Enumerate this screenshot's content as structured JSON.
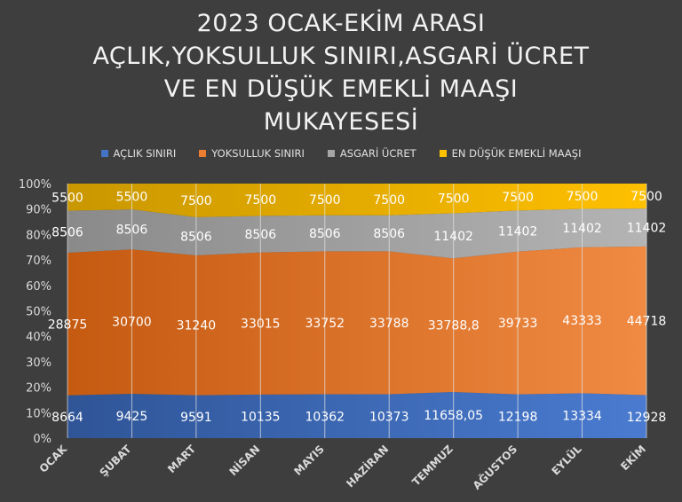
{
  "title_lines": [
    "2023 OCAK-EKİM ARASI",
    "AÇLIK,YOKSULLUK SINIRI,ASGARİ ÜCRET",
    "VE EN DÜŞÜK EMEKLİ MAAŞI",
    "MUKAYESESİ"
  ],
  "colors": {
    "background": "#3e3e3e",
    "aclik": "#4472c4",
    "yoksulluk": "#ed7d31",
    "asgari": "#a5a5a5",
    "emekli": "#ffc000"
  },
  "chart_data": {
    "type": "area",
    "stacked": "percent",
    "categories": [
      "OCAK",
      "ŞUBAT",
      "MART",
      "NİSAN",
      "MAYIS",
      "HAZİRAN",
      "TEMMUZ",
      "AĞUSTOS",
      "EYLÜL",
      "EKİM"
    ],
    "series": [
      {
        "name": "AÇLIK SINIRI",
        "values": [
          8664,
          9425,
          9591,
          10135,
          10362,
          10373,
          11658.05,
          12198,
          13334,
          12928
        ],
        "labels": [
          "8664",
          "9425",
          "9591",
          "10135",
          "10362",
          "10373",
          "11658,05",
          "12198",
          "13334",
          "12928"
        ]
      },
      {
        "name": "YOKSULLUK SINIRI",
        "values": [
          28875,
          30700,
          31240,
          33015,
          33752,
          33788,
          33788.8,
          39733,
          43333,
          44718
        ],
        "labels": [
          "28875",
          "30700",
          "31240",
          "33015",
          "33752",
          "33788",
          "33788,8",
          "39733",
          "43333",
          "44718"
        ]
      },
      {
        "name": "ASGARİ ÜCRET",
        "values": [
          8506,
          8506,
          8506,
          8506,
          8506,
          8506,
          11402,
          11402,
          11402,
          11402
        ],
        "labels": [
          "8506",
          "8506",
          "8506",
          "8506",
          "8506",
          "8506",
          "11402",
          "11402",
          "11402",
          "11402"
        ]
      },
      {
        "name": "EN DÜŞÜK EMEKLİ MAAŞI",
        "values": [
          5500,
          5500,
          7500,
          7500,
          7500,
          7500,
          7500,
          7500,
          7500,
          7500
        ],
        "labels": [
          "5500",
          "5500",
          "7500",
          "7500",
          "7500",
          "7500",
          "7500",
          "7500",
          "7500",
          "7500"
        ]
      }
    ],
    "yticks": [
      "0%",
      "10%",
      "20%",
      "30%",
      "40%",
      "50%",
      "60%",
      "70%",
      "80%",
      "90%",
      "100%"
    ],
    "ylim": [
      0,
      100
    ],
    "grid": "vertical",
    "legend": "top"
  }
}
